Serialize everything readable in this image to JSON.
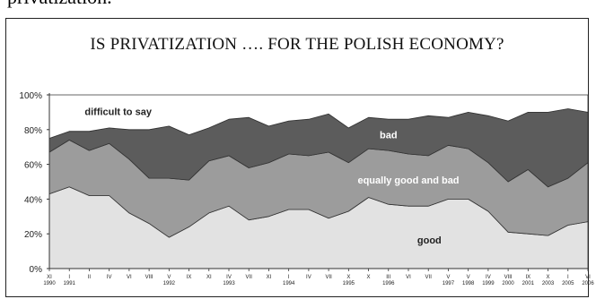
{
  "page_top_text": "privatization.",
  "chart_data": {
    "type": "area",
    "stacked": true,
    "title": "IS PRIVATIZATION …. FOR THE POLISH ECONOMY?",
    "ylim": [
      0,
      100
    ],
    "y_tick_labels": [
      "0%",
      "20%",
      "40%",
      "60%",
      "80%",
      "100%"
    ],
    "x_tick_labels": [
      [
        "XI",
        "1990"
      ],
      [
        "I",
        "1991"
      ],
      [
        "II",
        ""
      ],
      [
        "IV",
        ""
      ],
      [
        "VI",
        ""
      ],
      [
        "VIII",
        ""
      ],
      [
        "V",
        "1992"
      ],
      [
        "IX",
        ""
      ],
      [
        "XI",
        ""
      ],
      [
        "IV",
        "1993"
      ],
      [
        "VII",
        ""
      ],
      [
        "XI",
        ""
      ],
      [
        "I",
        "1994"
      ],
      [
        "IV",
        ""
      ],
      [
        "VII",
        ""
      ],
      [
        "X",
        "1995"
      ],
      [
        "X",
        ""
      ],
      [
        "III",
        "1996"
      ],
      [
        "VI",
        ""
      ],
      [
        "VII",
        ""
      ],
      [
        "V",
        "1997"
      ],
      [
        "V",
        "1998"
      ],
      [
        "IV",
        "1999"
      ],
      [
        "VIII",
        "2000"
      ],
      [
        "IX",
        "2001"
      ],
      [
        "X",
        "2003"
      ],
      [
        "I",
        "2005"
      ],
      [
        "VI",
        "2006"
      ]
    ],
    "series": [
      {
        "name": "good",
        "values": [
          43,
          47,
          42,
          42,
          32,
          26,
          18,
          24,
          32,
          36,
          28,
          30,
          34,
          34,
          29,
          33,
          41,
          37,
          36,
          36,
          40,
          40,
          33,
          21,
          20,
          19,
          25,
          27
        ]
      },
      {
        "name": "equally good and bad",
        "values": [
          24,
          27,
          26,
          30,
          31,
          26,
          34,
          27,
          30,
          29,
          30,
          31,
          32,
          31,
          38,
          28,
          28,
          31,
          30,
          29,
          31,
          29,
          28,
          29,
          37,
          28,
          27,
          34
        ]
      },
      {
        "name": "bad",
        "values": [
          8,
          5,
          11,
          9,
          17,
          28,
          30,
          26,
          19,
          21,
          29,
          21,
          19,
          21,
          22,
          20,
          18,
          18,
          20,
          23,
          16,
          21,
          27,
          35,
          33,
          43,
          40,
          29
        ]
      },
      {
        "name": "difficult to say",
        "values": [
          25,
          21,
          21,
          19,
          20,
          20,
          18,
          23,
          19,
          14,
          13,
          18,
          15,
          14,
          11,
          19,
          13,
          14,
          14,
          12,
          13,
          10,
          12,
          15,
          10,
          10,
          8,
          10
        ]
      }
    ],
    "colors": [
      "#e2e2e2",
      "#9c9c9c",
      "#5c5c5c",
      "#ffffff"
    ],
    "label_colors": [
      "#222222",
      "#ffffff",
      "#ffffff",
      "#222222"
    ]
  }
}
